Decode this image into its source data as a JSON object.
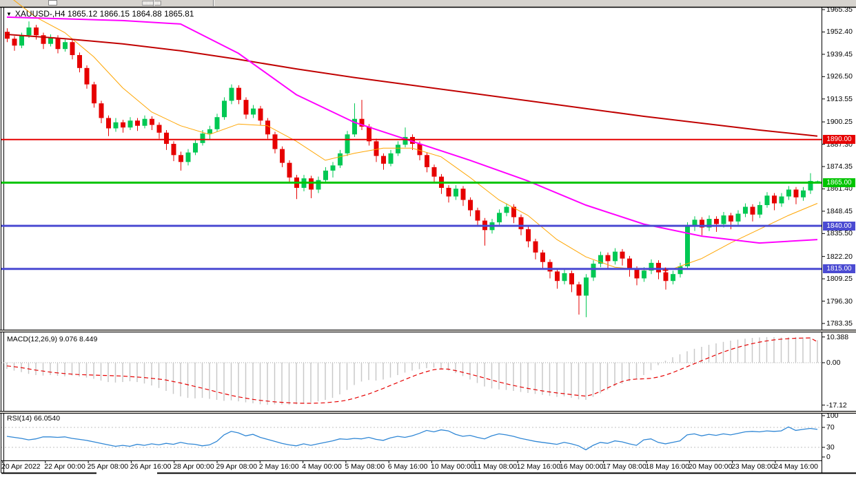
{
  "title": {
    "dropdown_icon": "▼",
    "text": "XAUUSD-,H4 1865.12 1866.15 1864.88 1865.81"
  },
  "indicators": {
    "macd_label": "MACD(12,26,9) 9.076 8.449",
    "rsi_label": "RSI(14) 66.0540"
  },
  "colors": {
    "up": "#00C853",
    "down": "#E60000",
    "ma_fast": "#FFA500",
    "ma_mid": "#FF00FF",
    "ma_slow": "#C00000",
    "macd_bar": "#C8C8C8",
    "macd_signal": "#E60000",
    "rsi_line": "#2E86D5",
    "level_dash": "#C0C0C0",
    "frame": "#000000",
    "toolbar_bg": "#D6D3CE"
  },
  "chart_data": [
    {
      "type": "candlestick",
      "symbol": "XAUUSD-",
      "timeframe": "H4",
      "current_bar": {
        "open": 1865.12,
        "high": 1866.15,
        "low": 1864.88,
        "close": 1865.81
      },
      "ylim": [
        1783.35,
        1965.35
      ],
      "y_tick_labels": [
        "1965.35",
        "1952.40",
        "1939.45",
        "1926.50",
        "1913.55",
        "1900.25",
        "1887.30",
        "1874.35",
        "1861.40",
        "1848.45",
        "1835.50",
        "1822.20",
        "1809.25",
        "1796.30",
        "1783.35"
      ],
      "x_tick_labels": [
        "20 Apr 2022",
        "22 Apr 00:00",
        "25 Apr 08:00",
        "26 Apr 16:00",
        "28 Apr 00:00",
        "29 Apr 08:00",
        "2 May 16:00",
        "4 May 00:00",
        "5 May 08:00",
        "6 May 16:00",
        "10 May 00:00",
        "11 May 08:00",
        "12 May 16:00",
        "16 May 00:00",
        "17 May 08:00",
        "18 May 16:00",
        "20 May 00:00",
        "23 May 08:00",
        "24 May 16:00"
      ],
      "hlines": [
        {
          "price": 1890.0,
          "label": "1890.00",
          "color": "#E60000",
          "width": 2
        },
        {
          "price": 1865.0,
          "label": "1865.00",
          "color": "#00C400",
          "width": 3
        },
        {
          "price": 1840.0,
          "label": "1840.00",
          "color": "#4A4AD2",
          "width": 3
        },
        {
          "price": 1815.0,
          "label": "1815.00",
          "color": "#4A4AD2",
          "width": 3
        }
      ],
      "marker": {
        "index": 91,
        "price": 1814.2,
        "glyph": "plus",
        "color": "#E60000"
      },
      "overlays": {
        "fast": {
          "step": 4,
          "width": 1,
          "values": [
            1974,
            1961,
            1952,
            1938,
            1920,
            1906,
            1898,
            1893,
            1899,
            1898,
            1889,
            1878,
            1882,
            1885,
            1885,
            1880,
            1868,
            1855,
            1846,
            1832,
            1822,
            1816,
            1814.5,
            1815,
            1821,
            1830,
            1838,
            1846,
            1853
          ]
        },
        "medium": {
          "step": 8,
          "width": 2,
          "values": [
            1961,
            1960,
            1959,
            1957,
            1940,
            1916,
            1900,
            1889,
            1878,
            1866,
            1852,
            1841,
            1834,
            1830,
            1832
          ]
        },
        "slow": {
          "step": 8,
          "width": 2,
          "values": [
            1951,
            1948.5,
            1945.5,
            1941.5,
            1936.5,
            1931,
            1926,
            1921.5,
            1917,
            1912.5,
            1908,
            1903.5,
            1899.5,
            1895.5,
            1892
          ]
        }
      },
      "candles": [
        [
          1952.5,
          1954.5,
          1946.5,
          1948.5
        ],
        [
          1948.5,
          1950.0,
          1941.5,
          1944.5
        ],
        [
          1944.5,
          1952.0,
          1943.0,
          1950.5
        ],
        [
          1950.5,
          1958.5,
          1949.0,
          1955.0
        ],
        [
          1955.0,
          1956.5,
          1948.0,
          1950.5
        ],
        [
          1950.5,
          1952.0,
          1942.5,
          1945.5
        ],
        [
          1945.5,
          1951.0,
          1944.0,
          1949.0
        ],
        [
          1949.0,
          1950.5,
          1940.0,
          1942.5
        ],
        [
          1942.5,
          1948.0,
          1941.0,
          1946.5
        ],
        [
          1946.5,
          1948.0,
          1936.5,
          1939.0
        ],
        [
          1939.0,
          1940.5,
          1929.0,
          1931.5
        ],
        [
          1931.5,
          1933.0,
          1919.5,
          1922.0
        ],
        [
          1922.0,
          1923.5,
          1908.5,
          1911.0
        ],
        [
          1911.0,
          1912.5,
          1899.5,
          1902.5
        ],
        [
          1902.5,
          1904.0,
          1892.0,
          1896.5
        ],
        [
          1896.5,
          1902.5,
          1894.5,
          1900.0
        ],
        [
          1900.0,
          1901.5,
          1894.0,
          1897.0
        ],
        [
          1897.0,
          1903.0,
          1895.5,
          1901.0
        ],
        [
          1901.0,
          1902.5,
          1895.0,
          1898.0
        ],
        [
          1898.0,
          1904.0,
          1896.5,
          1902.0
        ],
        [
          1902.0,
          1903.5,
          1895.5,
          1898.5
        ],
        [
          1898.5,
          1900.0,
          1890.5,
          1894.0
        ],
        [
          1894.0,
          1895.5,
          1884.0,
          1887.5
        ],
        [
          1887.5,
          1889.0,
          1877.5,
          1881.0
        ],
        [
          1881.0,
          1883.0,
          1872.0,
          1877.0
        ],
        [
          1877.0,
          1884.5,
          1875.0,
          1882.5
        ],
        [
          1882.5,
          1890.0,
          1881.0,
          1888.0
        ],
        [
          1888.0,
          1895.5,
          1886.5,
          1893.5
        ],
        [
          1893.5,
          1898.0,
          1890.0,
          1896.0
        ],
        [
          1896.0,
          1905.0,
          1894.5,
          1903.0
        ],
        [
          1903.0,
          1914.5,
          1901.5,
          1912.5
        ],
        [
          1912.5,
          1922.0,
          1910.5,
          1920.0
        ],
        [
          1920.0,
          1921.5,
          1910.5,
          1913.0
        ],
        [
          1913.0,
          1914.5,
          1902.0,
          1904.5
        ],
        [
          1904.5,
          1910.0,
          1902.5,
          1908.0
        ],
        [
          1908.0,
          1909.5,
          1898.5,
          1901.0
        ],
        [
          1901.0,
          1902.5,
          1890.5,
          1893.0
        ],
        [
          1893.0,
          1894.5,
          1882.0,
          1884.5
        ],
        [
          1884.5,
          1886.0,
          1874.0,
          1876.5
        ],
        [
          1876.5,
          1878.0,
          1865.0,
          1868.0
        ],
        [
          1868.0,
          1869.5,
          1855.5,
          1862.0
        ],
        [
          1862.0,
          1869.5,
          1860.0,
          1867.5
        ],
        [
          1867.5,
          1869.0,
          1856.0,
          1861.0
        ],
        [
          1861.0,
          1868.5,
          1859.0,
          1866.5
        ],
        [
          1866.5,
          1874.0,
          1865.0,
          1872.0
        ],
        [
          1872.0,
          1877.0,
          1868.0,
          1875.0
        ],
        [
          1875.0,
          1884.0,
          1873.5,
          1882.0
        ],
        [
          1882.0,
          1895.0,
          1880.5,
          1893.0
        ],
        [
          1893.0,
          1911.0,
          1891.5,
          1902.0
        ],
        [
          1902.0,
          1913.0,
          1895.5,
          1897.5
        ],
        [
          1897.5,
          1899.0,
          1886.5,
          1889.0
        ],
        [
          1889.0,
          1890.5,
          1877.0,
          1880.5
        ],
        [
          1880.5,
          1882.0,
          1872.5,
          1876.0
        ],
        [
          1876.0,
          1884.0,
          1874.5,
          1882.0
        ],
        [
          1882.0,
          1889.0,
          1880.5,
          1887.0
        ],
        [
          1887.0,
          1897.0,
          1885.5,
          1891.5
        ],
        [
          1891.5,
          1893.0,
          1884.0,
          1887.5
        ],
        [
          1887.5,
          1889.0,
          1878.0,
          1881.0
        ],
        [
          1881.0,
          1882.5,
          1871.0,
          1874.0
        ],
        [
          1874.0,
          1875.5,
          1865.5,
          1868.5
        ],
        [
          1868.5,
          1870.0,
          1858.5,
          1862.0
        ],
        [
          1862.0,
          1863.5,
          1853.5,
          1857.0
        ],
        [
          1857.0,
          1863.5,
          1855.0,
          1861.5
        ],
        [
          1861.5,
          1863.0,
          1851.5,
          1855.0
        ],
        [
          1855.0,
          1856.5,
          1845.5,
          1849.0
        ],
        [
          1849.0,
          1850.5,
          1839.5,
          1843.0
        ],
        [
          1843.0,
          1844.5,
          1828.5,
          1837.5
        ],
        [
          1837.5,
          1844.0,
          1835.5,
          1842.0
        ],
        [
          1842.0,
          1849.5,
          1840.5,
          1847.5
        ],
        [
          1847.5,
          1853.0,
          1845.5,
          1851.0
        ],
        [
          1851.0,
          1852.5,
          1841.5,
          1845.0
        ],
        [
          1845.0,
          1846.5,
          1834.5,
          1838.0
        ],
        [
          1838.0,
          1839.5,
          1827.5,
          1831.0
        ],
        [
          1831.0,
          1832.5,
          1820.5,
          1824.5
        ],
        [
          1824.5,
          1826.0,
          1815.5,
          1819.0
        ],
        [
          1819.0,
          1820.5,
          1809.5,
          1813.5
        ],
        [
          1813.5,
          1815.0,
          1803.5,
          1808.0
        ],
        [
          1808.0,
          1814.5,
          1806.0,
          1812.5
        ],
        [
          1812.5,
          1814.0,
          1801.5,
          1806.0
        ],
        [
          1806.0,
          1807.5,
          1788.5,
          1799.5
        ],
        [
          1799.5,
          1812.0,
          1787.0,
          1810.0
        ],
        [
          1810.0,
          1820.0,
          1808.0,
          1818.0
        ],
        [
          1818.0,
          1825.0,
          1816.0,
          1823.0
        ],
        [
          1823.0,
          1824.5,
          1815.5,
          1819.5
        ],
        [
          1819.5,
          1827.0,
          1817.5,
          1825.0
        ],
        [
          1825.0,
          1826.5,
          1817.0,
          1821.0
        ],
        [
          1821.0,
          1822.5,
          1810.5,
          1815.0
        ],
        [
          1815.0,
          1816.5,
          1805.5,
          1809.5
        ],
        [
          1809.5,
          1816.0,
          1807.5,
          1814.0
        ],
        [
          1814.0,
          1820.5,
          1812.0,
          1818.5
        ],
        [
          1818.5,
          1820.0,
          1809.0,
          1813.0
        ],
        [
          1813.0,
          1814.5,
          1803.0,
          1808.0
        ],
        [
          1808.0,
          1814.0,
          1806.0,
          1812.0
        ],
        [
          1812.0,
          1818.5,
          1810.0,
          1816.5
        ],
        [
          1816.5,
          1842.0,
          1814.5,
          1840.0
        ],
        [
          1840.0,
          1845.5,
          1837.0,
          1843.5
        ],
        [
          1843.5,
          1845.0,
          1834.5,
          1839.0
        ],
        [
          1839.0,
          1846.0,
          1837.0,
          1844.0
        ],
        [
          1844.0,
          1845.5,
          1836.5,
          1841.0
        ],
        [
          1841.0,
          1848.0,
          1839.0,
          1846.0
        ],
        [
          1846.0,
          1847.5,
          1838.0,
          1842.5
        ],
        [
          1842.5,
          1849.0,
          1840.5,
          1847.0
        ],
        [
          1847.0,
          1853.0,
          1845.0,
          1851.0
        ],
        [
          1851.0,
          1852.5,
          1842.5,
          1846.5
        ],
        [
          1846.5,
          1854.0,
          1844.5,
          1852.0
        ],
        [
          1852.0,
          1859.5,
          1850.5,
          1857.5
        ],
        [
          1857.5,
          1859.0,
          1849.0,
          1853.0
        ],
        [
          1853.0,
          1859.0,
          1851.0,
          1857.0
        ],
        [
          1857.0,
          1863.0,
          1855.0,
          1861.0
        ],
        [
          1861.0,
          1862.5,
          1852.5,
          1856.5
        ],
        [
          1856.5,
          1862.5,
          1854.5,
          1860.5
        ],
        [
          1860.5,
          1870.5,
          1858.5,
          1866.0
        ],
        [
          1865.1,
          1866.2,
          1864.9,
          1865.8
        ]
      ]
    },
    {
      "type": "bar",
      "name": "MACD",
      "params": "12,26,9",
      "value_main": 9.076,
      "value_signal": 8.449,
      "ylim": [
        -17.12,
        10.388
      ],
      "y_tick_labels": [
        "10.388",
        "0.00",
        "-17.12"
      ],
      "values": [
        -2.5,
        -3.2,
        -3.8,
        -4.5,
        -5.0,
        -5.2,
        -5.0,
        -5.3,
        -5.5,
        -5.2,
        -5.6,
        -6.0,
        -6.5,
        -7.2,
        -7.8,
        -8.0,
        -7.8,
        -7.5,
        -7.8,
        -8.4,
        -9.2,
        -10.2,
        -11.4,
        -12.6,
        -13.6,
        -14.2,
        -14.4,
        -14.2,
        -14.6,
        -15.0,
        -15.4,
        -15.2,
        -15.6,
        -16.0,
        -16.4,
        -16.8,
        -17.0,
        -16.8,
        -16.9,
        -17.0,
        -16.8,
        -16.4,
        -16.0,
        -15.6,
        -15.0,
        -14.2,
        -12.8,
        -11.0,
        -9.0,
        -7.6,
        -7.0,
        -7.2,
        -6.8,
        -6.0,
        -5.0,
        -4.0,
        -3.2,
        -2.6,
        -2.2,
        -2.0,
        -2.4,
        -3.2,
        -4.2,
        -5.4,
        -6.8,
        -8.2,
        -9.6,
        -10.4,
        -10.8,
        -11.0,
        -11.4,
        -11.8,
        -12.2,
        -12.6,
        -13.0,
        -13.4,
        -13.8,
        -13.6,
        -14.2,
        -14.8,
        -15.0,
        -13.8,
        -12.4,
        -11.0,
        -9.5,
        -8.5,
        -7.5,
        -6.5,
        -5.0,
        -3.0,
        -1.0,
        0.8,
        2.2,
        3.4,
        4.6,
        5.6,
        6.4,
        7.2,
        7.8,
        8.4,
        8.9,
        9.3,
        9.7,
        10.0,
        10.2,
        10.35,
        10.3,
        10.2,
        10.3,
        10.35,
        10.2,
        10.3,
        9.076
      ],
      "signal": [
        -1.3,
        -1.6,
        -2.0,
        -2.5,
        -3.0,
        -3.4,
        -3.8,
        -4.1,
        -4.4,
        -4.6,
        -4.8,
        -4.9,
        -5.0,
        -5.1,
        -5.2,
        -5.3,
        -5.4,
        -5.6,
        -5.8,
        -6.0,
        -6.3,
        -6.6,
        -7.0,
        -7.6,
        -8.2,
        -8.9,
        -9.6,
        -10.3,
        -11.0,
        -11.8,
        -12.5,
        -13.2,
        -13.8,
        -14.3,
        -14.8,
        -15.2,
        -15.5,
        -15.8,
        -16.0,
        -16.2,
        -16.3,
        -16.4,
        -16.4,
        -16.3,
        -16.2,
        -15.9,
        -15.6,
        -15.1,
        -14.4,
        -13.5,
        -12.6,
        -11.5,
        -10.4,
        -9.2,
        -8.0,
        -6.8,
        -5.6,
        -4.5,
        -3.6,
        -2.8,
        -2.5,
        -2.6,
        -3.2,
        -3.9,
        -4.6,
        -5.4,
        -6.2,
        -7.0,
        -7.8,
        -8.5,
        -9.2,
        -9.8,
        -10.4,
        -10.9,
        -11.4,
        -11.8,
        -12.2,
        -12.5,
        -12.9,
        -13.2,
        -13.5,
        -12.8,
        -11.6,
        -10.2,
        -8.8,
        -7.6,
        -6.9,
        -6.6,
        -6.5,
        -6.3,
        -5.8,
        -5.0,
        -4.0,
        -2.8,
        -1.6,
        -0.4,
        0.8,
        2.0,
        3.2,
        4.3,
        5.3,
        6.2,
        7.0,
        7.7,
        8.3,
        8.8,
        9.2,
        9.5,
        9.7,
        9.85,
        9.95,
        10.0,
        8.449
      ]
    },
    {
      "type": "line",
      "name": "RSI",
      "period": 14,
      "value": 66.054,
      "ylim": [
        0,
        100
      ],
      "levels": [
        70,
        30
      ],
      "y_tick_labels": [
        "100",
        "70",
        "30",
        "0"
      ],
      "values": [
        52,
        50,
        48,
        45,
        47,
        51,
        51,
        50,
        51,
        48,
        46,
        44,
        41,
        38,
        35,
        32,
        34,
        32,
        36,
        34,
        37,
        35,
        38,
        36,
        40,
        37,
        36,
        33,
        35,
        42,
        55,
        62,
        59,
        53,
        56,
        50,
        46,
        42,
        38,
        35,
        33,
        37,
        34,
        37,
        40,
        43,
        47,
        46,
        48,
        47,
        50,
        46,
        44,
        49,
        52,
        50,
        53,
        58,
        64,
        61,
        65,
        63,
        56,
        52,
        54,
        50,
        47,
        53,
        57,
        55,
        52,
        48,
        45,
        42,
        40,
        38,
        36,
        40,
        37,
        33,
        25,
        34,
        40,
        38,
        43,
        41,
        37,
        34,
        45,
        47,
        40,
        37,
        40,
        43,
        55,
        57,
        53,
        56,
        54,
        57,
        55,
        58,
        61,
        62,
        61,
        63,
        62,
        63,
        71,
        64,
        66,
        68,
        66.054
      ]
    }
  ]
}
